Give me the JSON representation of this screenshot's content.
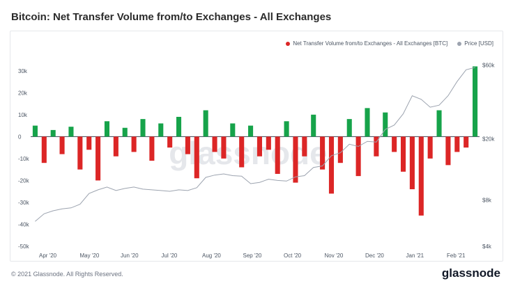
{
  "header": {
    "title": "Bitcoin: Net Transfer Volume from/to Exchanges - All Exchanges"
  },
  "footer": {
    "copyright": "© 2021 Glassnode. All Rights Reserved.",
    "brand": "glassnode"
  },
  "watermark": "glassnode",
  "chart_data": {
    "type": "bar",
    "title": "Bitcoin: Net Transfer Volume from/to Exchanges - All Exchanges",
    "legend_position": "top-right",
    "series": [
      {
        "name": "Net Transfer Volume from/to Exchanges - All Exchanges [BTC]",
        "color_positive": "#16a34a",
        "color_negative": "#dc2626",
        "x": [
          "Mar 20",
          "Mar 27",
          "Apr 3",
          "Apr 10",
          "Apr 17",
          "Apr 24",
          "May 1",
          "May 8",
          "May 15",
          "May 22",
          "May 29",
          "Jun 5",
          "Jun 12",
          "Jun 19",
          "Jun 26",
          "Jul 3",
          "Jul 10",
          "Jul 17",
          "Jul 24",
          "Jul 31",
          "Aug 7",
          "Aug 14",
          "Aug 21",
          "Aug 28",
          "Sep 4",
          "Sep 11",
          "Sep 18",
          "Sep 25",
          "Oct 2",
          "Oct 9",
          "Oct 16",
          "Oct 23",
          "Oct 30",
          "Nov 6",
          "Nov 13",
          "Nov 20",
          "Nov 27",
          "Dec 4",
          "Dec 11",
          "Dec 18",
          "Dec 25",
          "Jan 1",
          "Jan 8",
          "Jan 15",
          "Jan 22",
          "Jan 29",
          "Feb 5",
          "Feb 12",
          "Feb 19",
          "Feb 26"
        ],
        "values": [
          5000,
          -12000,
          3000,
          -8000,
          4500,
          -15000,
          -6000,
          -20000,
          7000,
          -9000,
          4000,
          -7000,
          8000,
          -11000,
          6000,
          -5000,
          9000,
          -8000,
          -19000,
          12000,
          -7000,
          -10000,
          6000,
          -14000,
          5000,
          -9000,
          -6000,
          -17000,
          7000,
          -21000,
          -9000,
          10000,
          -15000,
          -26000,
          -12000,
          8000,
          -18000,
          13000,
          -9000,
          11000,
          -7000,
          -16000,
          -24000,
          -36000,
          -10000,
          12000,
          -13000,
          -7000,
          -5000,
          32000
        ]
      },
      {
        "name": "Price [USD]",
        "color": "#9ca3af",
        "x": [
          "Mar 20",
          "Mar 27",
          "Apr 3",
          "Apr 10",
          "Apr 17",
          "Apr 24",
          "May 1",
          "May 8",
          "May 15",
          "May 22",
          "May 29",
          "Jun 5",
          "Jun 12",
          "Jun 19",
          "Jun 26",
          "Jul 3",
          "Jul 10",
          "Jul 17",
          "Jul 24",
          "Jul 31",
          "Aug 7",
          "Aug 14",
          "Aug 21",
          "Aug 28",
          "Sep 4",
          "Sep 11",
          "Sep 18",
          "Sep 25",
          "Oct 2",
          "Oct 9",
          "Oct 16",
          "Oct 23",
          "Oct 30",
          "Nov 6",
          "Nov 13",
          "Nov 20",
          "Nov 27",
          "Dec 4",
          "Dec 11",
          "Dec 18",
          "Dec 25",
          "Jan 1",
          "Jan 8",
          "Jan 15",
          "Jan 22",
          "Jan 29",
          "Feb 5",
          "Feb 12",
          "Feb 19",
          "Feb 26"
        ],
        "values": [
          5800,
          6500,
          6800,
          7000,
          7100,
          7500,
          8800,
          9300,
          9700,
          9200,
          9500,
          9700,
          9400,
          9300,
          9200,
          9100,
          9300,
          9200,
          9600,
          11200,
          11600,
          11800,
          11500,
          11400,
          10200,
          10400,
          10900,
          10700,
          10600,
          11300,
          11500,
          13000,
          13300,
          15500,
          16200,
          18400,
          17800,
          19200,
          19000,
          23000,
          24500,
          29000,
          38000,
          36000,
          32000,
          33000,
          38000,
          47000,
          56000,
          58000
        ]
      }
    ],
    "x_tick_labels": [
      "Apr '20",
      "May '20",
      "Jun '20",
      "Jul '20",
      "Aug '20",
      "Sep '20",
      "Oct '20",
      "Nov '20",
      "Dec '20",
      "Jan '21",
      "Feb '21"
    ],
    "y_left": {
      "ticks": [
        "30k",
        "20k",
        "10k",
        "0",
        "-10k",
        "-20k",
        "-30k",
        "-40k",
        "-50k"
      ],
      "ylim": [
        -50000,
        35000
      ]
    },
    "y_right": {
      "ticks": [
        "$60k",
        "$20k",
        "$8k",
        "$4k"
      ],
      "scale": "log",
      "ylim": [
        4000,
        65000
      ]
    },
    "grid": true
  }
}
